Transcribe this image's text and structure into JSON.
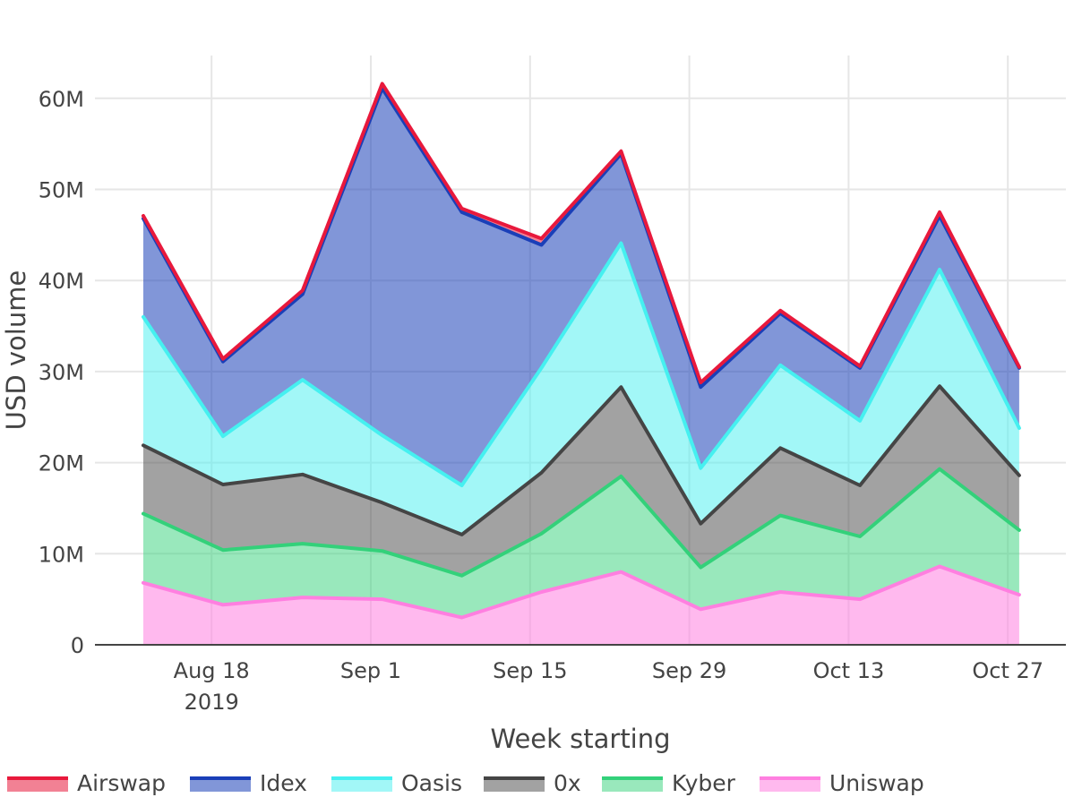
{
  "chart_data": {
    "type": "area",
    "stacked": true,
    "xlabel": "Week starting",
    "ylabel": "USD volume",
    "x": [
      "2019-08-12",
      "2019-08-19",
      "2019-08-26",
      "2019-09-02",
      "2019-09-09",
      "2019-09-16",
      "2019-09-23",
      "2019-09-30",
      "2019-10-07",
      "2019-10-14",
      "2019-10-21",
      "2019-10-28"
    ],
    "x_ticks": [
      {
        "date": "2019-08-18",
        "label": "Aug 18",
        "sublabel": "2019"
      },
      {
        "date": "2019-09-01",
        "label": "Sep 1",
        "sublabel": ""
      },
      {
        "date": "2019-09-15",
        "label": "Sep 15",
        "sublabel": ""
      },
      {
        "date": "2019-09-29",
        "label": "Sep 29",
        "sublabel": ""
      },
      {
        "date": "2019-10-13",
        "label": "Oct 13",
        "sublabel": ""
      },
      {
        "date": "2019-10-27",
        "label": "Oct 27",
        "sublabel": ""
      }
    ],
    "y_ticks": [
      {
        "value": 0,
        "label": "0"
      },
      {
        "value": 10000000,
        "label": "10M"
      },
      {
        "value": 20000000,
        "label": "20M"
      },
      {
        "value": 30000000,
        "label": "30M"
      },
      {
        "value": 40000000,
        "label": "40M"
      },
      {
        "value": 50000000,
        "label": "50M"
      },
      {
        "value": 60000000,
        "label": "60M"
      }
    ],
    "ylim": [
      0,
      64700000
    ],
    "legend_position": "bottom",
    "grid": true,
    "series": [
      {
        "name": "Uniswap",
        "color": "#ff7fe0",
        "fill": "rgba(255,127,224,0.55)",
        "values": [
          6800000,
          4400000,
          5200000,
          5000000,
          3000000,
          5800000,
          8000000,
          3900000,
          5800000,
          5000000,
          8600000,
          5500000
        ]
      },
      {
        "name": "Kyber",
        "color": "#33d17a",
        "fill": "rgba(51,209,122,0.5)",
        "values": [
          7600000,
          6000000,
          5900000,
          5300000,
          4600000,
          6400000,
          10500000,
          4600000,
          8400000,
          6900000,
          10700000,
          7100000
        ]
      },
      {
        "name": "0x",
        "color": "#454545",
        "fill": "rgba(69,69,69,0.5)",
        "values": [
          7500000,
          7200000,
          7600000,
          5300000,
          4500000,
          6700000,
          9800000,
          4800000,
          7400000,
          5600000,
          9100000,
          6000000
        ]
      },
      {
        "name": "Oasis",
        "color": "#45f0f0",
        "fill": "rgba(69,240,240,0.5)",
        "values": [
          14100000,
          5300000,
          10400000,
          7400000,
          5400000,
          11500000,
          15800000,
          6100000,
          9100000,
          7100000,
          12800000,
          5200000
        ]
      },
      {
        "name": "Idex",
        "color": "#1a3fb8",
        "fill": "rgba(26,63,184,0.55)",
        "values": [
          10800000,
          8200000,
          9400000,
          38100000,
          30000000,
          13500000,
          9800000,
          8900000,
          5700000,
          5800000,
          5900000,
          6600000
        ]
      },
      {
        "name": "Airswap",
        "color": "#e8193c",
        "fill": "rgba(232,25,60,0.55)",
        "values": [
          300000,
          300000,
          400000,
          500000,
          400000,
          700000,
          300000,
          500000,
          300000,
          200000,
          400000,
          100000
        ]
      }
    ],
    "legend_order": [
      "Airswap",
      "Idex",
      "Oasis",
      "0x",
      "Kyber",
      "Uniswap"
    ]
  }
}
